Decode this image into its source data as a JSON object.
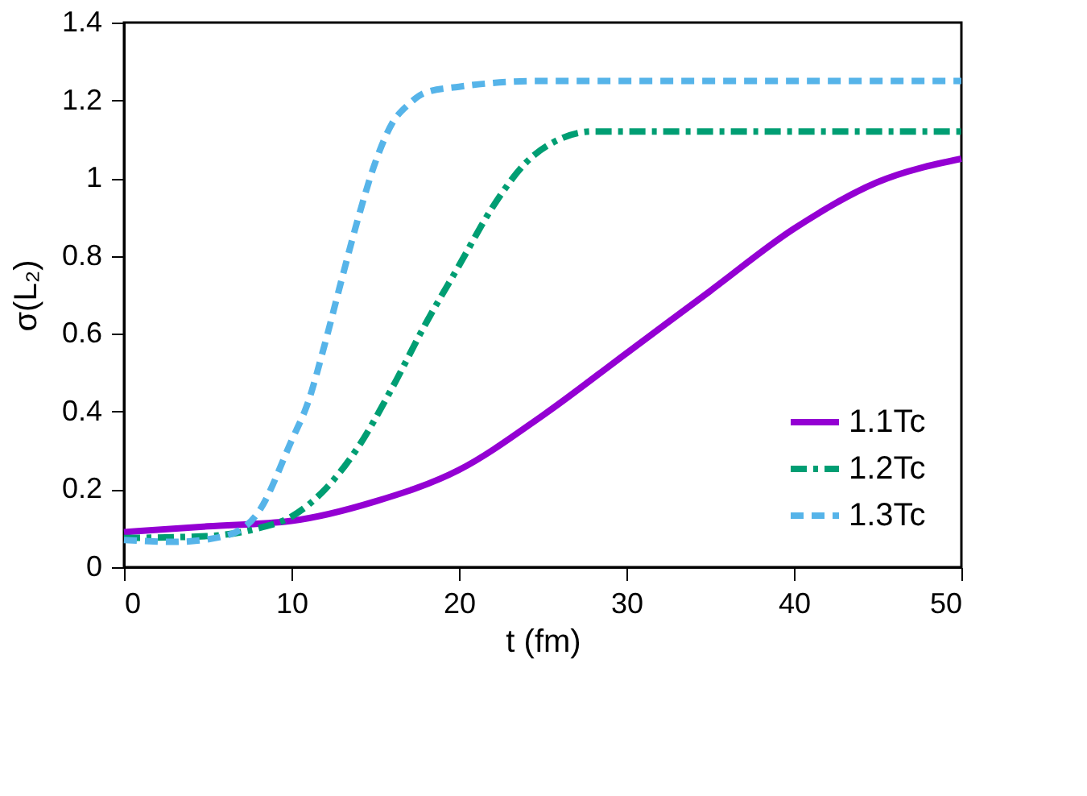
{
  "chart_data": {
    "type": "line",
    "xlabel": "t (fm)",
    "ylabel": "σ(L₂)",
    "xlim": [
      0,
      50
    ],
    "xticks": [
      0,
      10,
      20,
      30,
      40,
      50
    ],
    "ylim": [
      0,
      1.4
    ],
    "yticks": [
      0,
      0.2,
      0.4,
      0.6,
      0.8,
      1,
      1.2,
      1.4
    ],
    "grid": false,
    "legend": "bottom right",
    "marker": "none",
    "series": [
      {
        "name": "1.1Tc",
        "color": "#9400d3",
        "line_style": "solid",
        "x": [
          0,
          5,
          10,
          15,
          20,
          25,
          30,
          35,
          40,
          45,
          50
        ],
        "values": [
          0.09,
          0.105,
          0.119,
          0.169,
          0.25,
          0.39,
          0.55,
          0.71,
          0.87,
          0.99,
          1.05
        ]
      },
      {
        "name": "1.2Tc",
        "color": "#009e73",
        "line_style": "dashdot",
        "x": [
          0,
          5,
          8,
          10,
          12,
          14,
          16,
          18,
          20,
          22,
          24,
          26,
          28,
          30,
          40,
          50
        ],
        "values": [
          0.075,
          0.08,
          0.1,
          0.13,
          0.2,
          0.31,
          0.46,
          0.625,
          0.775,
          0.925,
          1.04,
          1.1,
          1.12,
          1.12,
          1.12,
          1.12
        ]
      },
      {
        "name": "1.3Tc",
        "color": "#56b4e9",
        "line_style": "dashed",
        "x": [
          0,
          3,
          6,
          8,
          10,
          11,
          12,
          13,
          14,
          15,
          16,
          17,
          18,
          20,
          25,
          50
        ],
        "values": [
          0.07,
          0.065,
          0.08,
          0.14,
          0.325,
          0.425,
          0.575,
          0.74,
          0.9,
          1.04,
          1.14,
          1.19,
          1.22,
          1.235,
          1.25,
          1.25
        ]
      }
    ]
  }
}
